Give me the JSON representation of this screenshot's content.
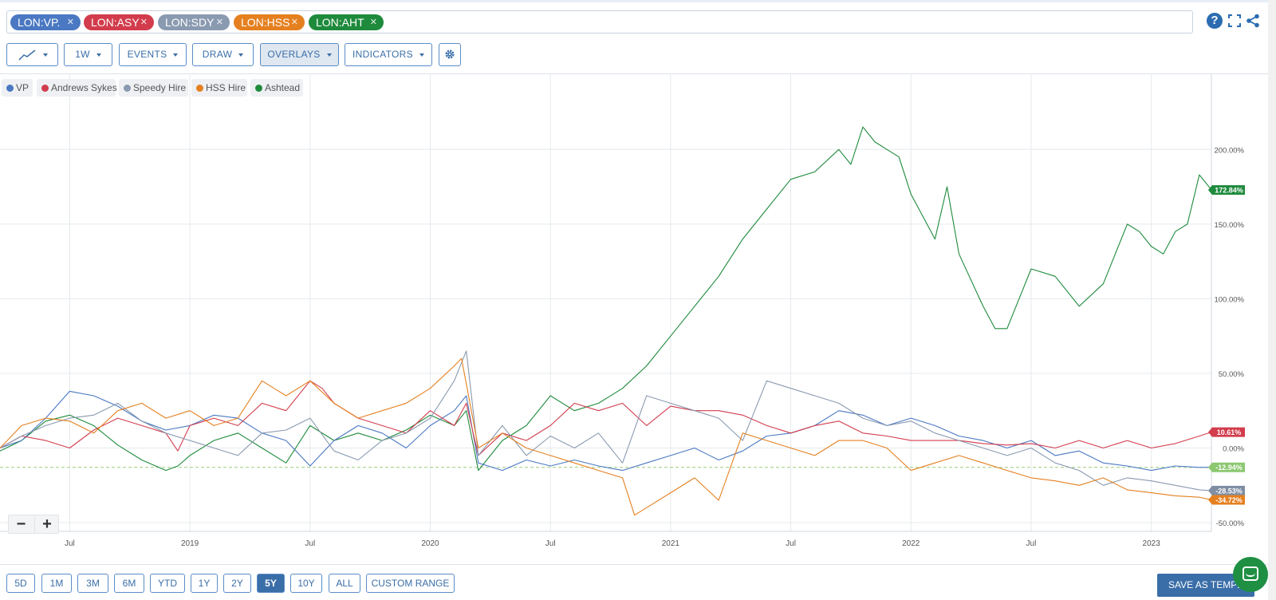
{
  "symbols": [
    {
      "label": "LON:VP.",
      "color": "#4a78c2"
    },
    {
      "label": "LON:ASY",
      "color": "#d23c4c"
    },
    {
      "label": "LON:SDY",
      "color": "#8a9ab0"
    },
    {
      "label": "LON:HSS",
      "color": "#e58020"
    },
    {
      "label": "LON:AHT",
      "color": "#1e8a3c"
    }
  ],
  "toolbar": {
    "interval": "1W",
    "events": "EVENTS",
    "draw": "DRAW",
    "overlays": "OVERLAYS",
    "indicators": "INDICATORS"
  },
  "legend": [
    {
      "label": "VP",
      "color": "#4a78c2"
    },
    {
      "label": "Andrews Sykes",
      "color": "#d23c4c"
    },
    {
      "label": "Speedy Hire",
      "color": "#8a9ab0"
    },
    {
      "label": "HSS Hire",
      "color": "#e58020"
    },
    {
      "label": "Ashtead",
      "color": "#1e8a3c"
    }
  ],
  "ranges": [
    {
      "label": "5D",
      "selected": false
    },
    {
      "label": "1M",
      "selected": false
    },
    {
      "label": "3M",
      "selected": false
    },
    {
      "label": "6M",
      "selected": false
    },
    {
      "label": "YTD",
      "selected": false
    },
    {
      "label": "1Y",
      "selected": false
    },
    {
      "label": "2Y",
      "selected": false
    },
    {
      "label": "5Y",
      "selected": true
    },
    {
      "label": "10Y",
      "selected": false
    },
    {
      "label": "ALL",
      "selected": false
    },
    {
      "label": "CUSTOM RANGE",
      "selected": false
    }
  ],
  "zoom": {
    "minus": "−",
    "plus": "+"
  },
  "save_label": "SAVE AS TEMPLATE",
  "chart_data": {
    "type": "line",
    "x_unit": "decimal year",
    "xlim": [
      2018.21,
      2023.25
    ],
    "ylim": [
      -52,
      252
    ],
    "y_ticks": [
      -50,
      0,
      50,
      100,
      150,
      200
    ],
    "y_tick_labels": [
      "-50.00%",
      "0.00%",
      "50.00%",
      "100.00%",
      "150.00%",
      "200.00%"
    ],
    "x_ticks": [
      {
        "x": 2018.5,
        "label": "Jul"
      },
      {
        "x": 2019.0,
        "label": "2019"
      },
      {
        "x": 2019.5,
        "label": "Jul"
      },
      {
        "x": 2020.0,
        "label": "2020"
      },
      {
        "x": 2020.5,
        "label": "Jul"
      },
      {
        "x": 2021.0,
        "label": "2021"
      },
      {
        "x": 2021.5,
        "label": "Jul"
      },
      {
        "x": 2022.0,
        "label": "2022"
      },
      {
        "x": 2022.5,
        "label": "Jul"
      },
      {
        "x": 2023.0,
        "label": "2023"
      }
    ],
    "baseline": {
      "value": -12.94,
      "label": "-12.94%",
      "color": "#9ccc7a"
    },
    "end_labels": [
      {
        "value": 172.84,
        "label": "172.84%",
        "color": "#1e8a3c"
      },
      {
        "value": 10.61,
        "label": "10.61%",
        "color": "#d23c4c"
      },
      {
        "value": -12.94,
        "label": "-12.94%",
        "color": "#8bc870"
      },
      {
        "value": -28.53,
        "label": "-28.53%",
        "color": "#7f8ea3"
      },
      {
        "value": -34.72,
        "label": "-34.72%",
        "color": "#e58020"
      }
    ],
    "series": [
      {
        "name": "Ashtead",
        "color": "#1e8a3c",
        "x": [
          2018.21,
          2018.3,
          2018.4,
          2018.5,
          2018.6,
          2018.7,
          2018.8,
          2018.9,
          2018.95,
          2019.0,
          2019.1,
          2019.2,
          2019.3,
          2019.4,
          2019.5,
          2019.6,
          2019.7,
          2019.8,
          2019.9,
          2020.0,
          2020.1,
          2020.15,
          2020.2,
          2020.3,
          2020.4,
          2020.5,
          2020.6,
          2020.7,
          2020.8,
          2020.9,
          2021.0,
          2021.1,
          2021.2,
          2021.3,
          2021.4,
          2021.5,
          2021.6,
          2021.7,
          2021.75,
          2021.8,
          2021.85,
          2021.9,
          2021.95,
          2022.0,
          2022.1,
          2022.15,
          2022.2,
          2022.3,
          2022.35,
          2022.4,
          2022.5,
          2022.6,
          2022.7,
          2022.8,
          2022.9,
          2022.95,
          2023.0,
          2023.05,
          2023.1,
          2023.15,
          2023.2,
          2023.25
        ],
        "values": [
          -2,
          5,
          18,
          22,
          15,
          2,
          -8,
          -15,
          -12,
          -5,
          5,
          10,
          0,
          -10,
          15,
          5,
          10,
          5,
          12,
          22,
          15,
          25,
          -15,
          5,
          15,
          35,
          25,
          30,
          40,
          55,
          75,
          95,
          115,
          140,
          160,
          180,
          185,
          200,
          190,
          215,
          205,
          200,
          195,
          170,
          140,
          175,
          130,
          95,
          80,
          80,
          120,
          115,
          95,
          110,
          150,
          145,
          135,
          130,
          145,
          150,
          183,
          173
        ]
      },
      {
        "name": "VP",
        "color": "#4a78c2",
        "x": [
          2018.21,
          2018.3,
          2018.4,
          2018.5,
          2018.6,
          2018.7,
          2018.8,
          2018.9,
          2019.0,
          2019.1,
          2019.2,
          2019.3,
          2019.4,
          2019.5,
          2019.6,
          2019.7,
          2019.8,
          2019.9,
          2020.0,
          2020.1,
          2020.15,
          2020.2,
          2020.3,
          2020.4,
          2020.5,
          2020.6,
          2020.7,
          2020.8,
          2020.9,
          2021.0,
          2021.1,
          2021.2,
          2021.3,
          2021.4,
          2021.5,
          2021.6,
          2021.7,
          2021.8,
          2021.9,
          2022.0,
          2022.1,
          2022.2,
          2022.3,
          2022.4,
          2022.5,
          2022.6,
          2022.7,
          2022.8,
          2022.9,
          2023.0,
          2023.1,
          2023.2,
          2023.25
        ],
        "values": [
          0,
          5,
          20,
          38,
          35,
          28,
          18,
          12,
          15,
          22,
          20,
          10,
          5,
          -12,
          5,
          15,
          10,
          0,
          15,
          25,
          35,
          -10,
          -15,
          -8,
          -12,
          -8,
          -12,
          -15,
          -10,
          -5,
          0,
          -8,
          -2,
          8,
          10,
          15,
          25,
          22,
          15,
          20,
          15,
          8,
          5,
          0,
          5,
          -5,
          -2,
          -10,
          -12,
          -15,
          -12,
          -13,
          -12.94
        ]
      },
      {
        "name": "Andrews Sykes",
        "color": "#d23c4c",
        "x": [
          2018.21,
          2018.3,
          2018.4,
          2018.5,
          2018.6,
          2018.7,
          2018.8,
          2018.9,
          2018.95,
          2019.0,
          2019.1,
          2019.2,
          2019.3,
          2019.4,
          2019.5,
          2019.55,
          2019.6,
          2019.7,
          2019.8,
          2019.9,
          2020.0,
          2020.1,
          2020.15,
          2020.2,
          2020.3,
          2020.4,
          2020.5,
          2020.6,
          2020.7,
          2020.8,
          2020.9,
          2021.0,
          2021.1,
          2021.2,
          2021.3,
          2021.4,
          2021.5,
          2021.6,
          2021.7,
          2021.8,
          2021.9,
          2022.0,
          2022.1,
          2022.2,
          2022.3,
          2022.4,
          2022.5,
          2022.6,
          2022.7,
          2022.8,
          2022.9,
          2023.0,
          2023.1,
          2023.2,
          2023.25
        ],
        "values": [
          0,
          8,
          5,
          0,
          12,
          20,
          15,
          10,
          -2,
          15,
          20,
          15,
          30,
          25,
          45,
          40,
          30,
          20,
          15,
          10,
          25,
          15,
          30,
          -5,
          10,
          5,
          15,
          30,
          25,
          30,
          15,
          28,
          25,
          25,
          22,
          15,
          10,
          15,
          18,
          10,
          8,
          5,
          5,
          5,
          3,
          2,
          3,
          0,
          5,
          0,
          5,
          0,
          3,
          8,
          10.61
        ]
      },
      {
        "name": "Speedy Hire",
        "color": "#8a9ab0",
        "x": [
          2018.21,
          2018.3,
          2018.4,
          2018.5,
          2018.6,
          2018.7,
          2018.8,
          2018.9,
          2019.0,
          2019.1,
          2019.2,
          2019.3,
          2019.4,
          2019.5,
          2019.6,
          2019.7,
          2019.8,
          2019.9,
          2020.0,
          2020.1,
          2020.15,
          2020.2,
          2020.3,
          2020.4,
          2020.5,
          2020.6,
          2020.7,
          2020.8,
          2020.9,
          2021.0,
          2021.1,
          2021.2,
          2021.3,
          2021.4,
          2021.5,
          2021.6,
          2021.7,
          2021.8,
          2021.9,
          2022.0,
          2022.1,
          2022.2,
          2022.3,
          2022.4,
          2022.5,
          2022.6,
          2022.7,
          2022.8,
          2022.9,
          2023.0,
          2023.1,
          2023.2,
          2023.25
        ],
        "values": [
          0,
          8,
          15,
          20,
          22,
          30,
          18,
          10,
          5,
          0,
          -5,
          10,
          12,
          20,
          -2,
          -8,
          5,
          10,
          20,
          45,
          65,
          -5,
          15,
          -5,
          8,
          0,
          10,
          -10,
          35,
          30,
          25,
          20,
          5,
          45,
          40,
          35,
          30,
          20,
          15,
          18,
          10,
          5,
          0,
          -5,
          0,
          -10,
          -15,
          -25,
          -20,
          -22,
          -25,
          -28,
          -28.53
        ]
      },
      {
        "name": "HSS Hire",
        "color": "#e58020",
        "x": [
          2018.21,
          2018.3,
          2018.4,
          2018.5,
          2018.6,
          2018.7,
          2018.8,
          2018.9,
          2019.0,
          2019.1,
          2019.2,
          2019.3,
          2019.35,
          2019.4,
          2019.5,
          2019.6,
          2019.7,
          2019.8,
          2019.9,
          2020.0,
          2020.1,
          2020.13,
          2020.2,
          2020.3,
          2020.4,
          2020.5,
          2020.6,
          2020.7,
          2020.8,
          2020.85,
          2020.9,
          2021.0,
          2021.1,
          2021.2,
          2021.3,
          2021.4,
          2021.5,
          2021.6,
          2021.7,
          2021.8,
          2021.9,
          2022.0,
          2022.1,
          2022.2,
          2022.3,
          2022.4,
          2022.5,
          2022.6,
          2022.7,
          2022.8,
          2022.9,
          2023.0,
          2023.1,
          2023.2,
          2023.25
        ],
        "values": [
          0,
          15,
          20,
          18,
          10,
          25,
          30,
          20,
          25,
          15,
          20,
          45,
          40,
          35,
          45,
          30,
          20,
          25,
          30,
          40,
          55,
          60,
          0,
          10,
          0,
          -5,
          -10,
          -15,
          -20,
          -45,
          -40,
          -30,
          -20,
          -35,
          10,
          5,
          0,
          -5,
          5,
          5,
          0,
          -15,
          -10,
          -5,
          -10,
          -15,
          -20,
          -22,
          -25,
          -20,
          -28,
          -30,
          -32,
          -33,
          -34.72
        ]
      }
    ]
  }
}
